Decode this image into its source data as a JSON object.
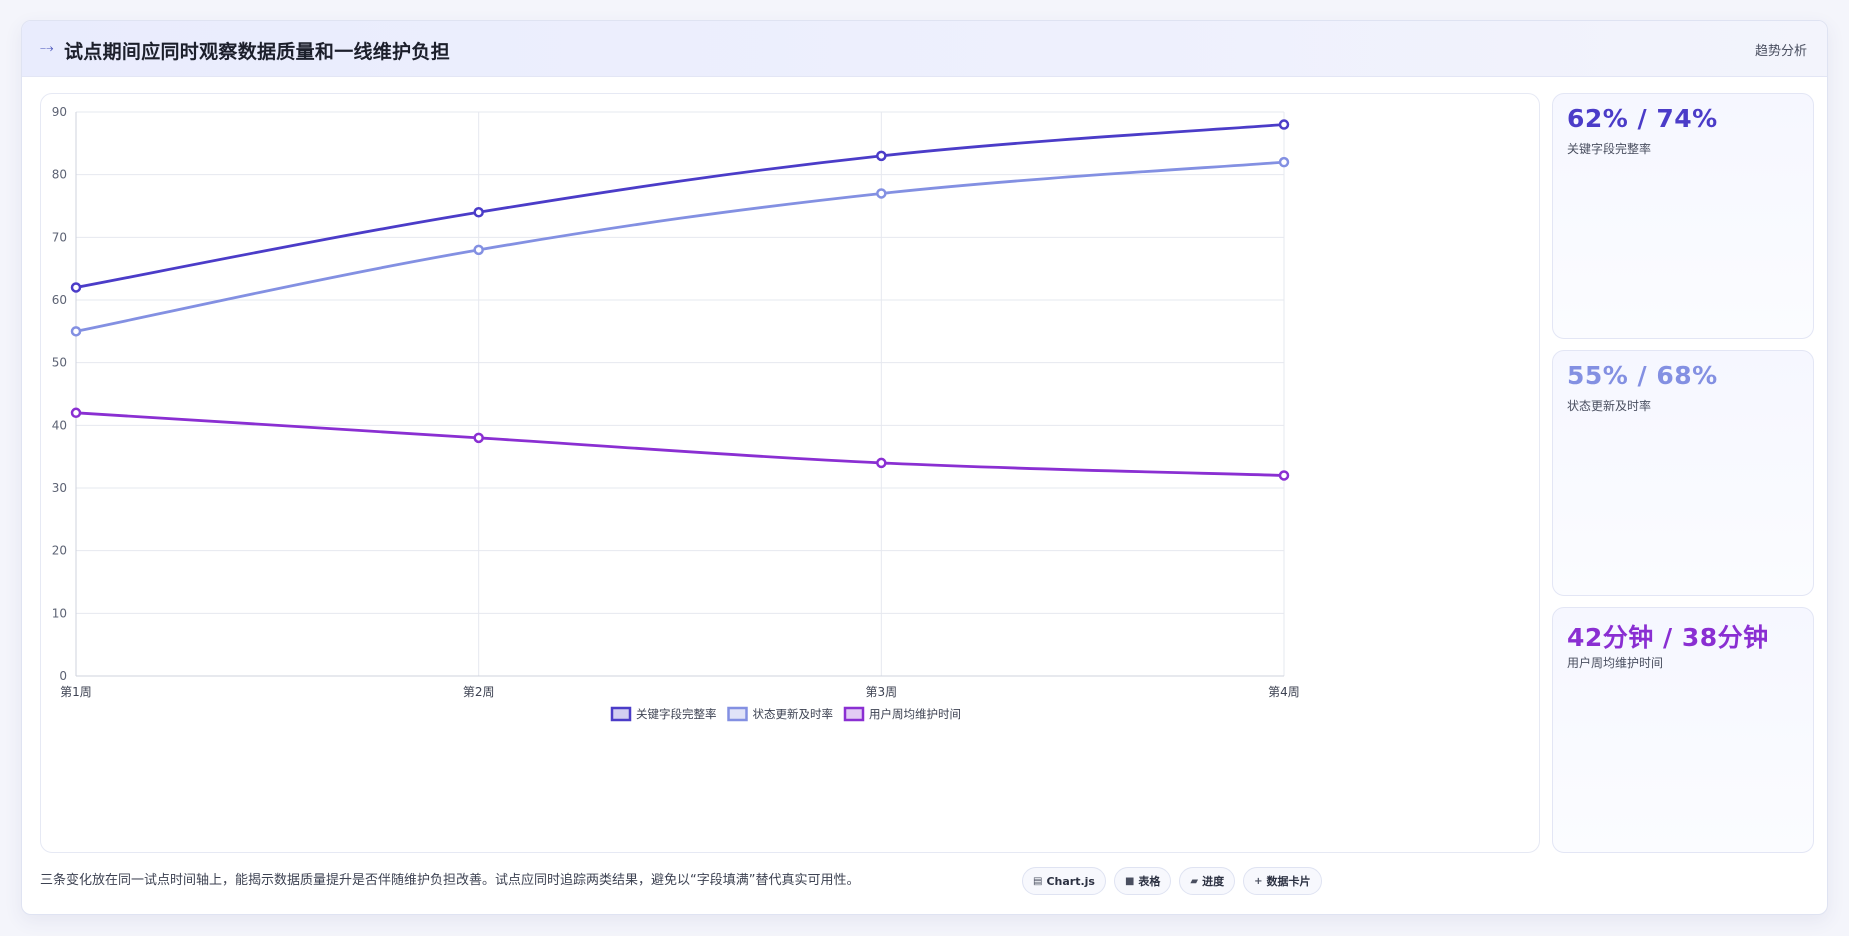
{
  "header": {
    "icon": "trend-icon",
    "title": "试点期间应同时观察数据质量和一线维护负担",
    "tag": "趋势分析"
  },
  "chart_data": {
    "type": "line",
    "categories": [
      "第1周",
      "第2周",
      "第3周",
      "第4周"
    ],
    "ylim": [
      0,
      90
    ],
    "yticks": [
      0,
      10,
      20,
      30,
      40,
      50,
      60,
      70,
      80,
      90
    ],
    "grid": true,
    "legend_position": "bottom",
    "series": [
      {
        "name": "关键字段完整率",
        "values": [
          62,
          74,
          83,
          88
        ],
        "color": "#4b3cc8"
      },
      {
        "name": "状态更新及时率",
        "values": [
          55,
          68,
          77,
          82
        ],
        "color": "#8390e2"
      },
      {
        "name": "用户周均维护时间",
        "values": [
          42,
          38,
          34,
          32
        ],
        "color": "#8a2fd2"
      }
    ]
  },
  "stats": [
    {
      "value": "62% / 74%",
      "label": "关键字段完整率",
      "color": "#4b3cc8"
    },
    {
      "value": "55% / 68%",
      "label": "状态更新及时率",
      "color": "#8390e2"
    },
    {
      "value": "42分钟 / 38分钟",
      "label": "用户周均维护时间",
      "color": "#8a2fd2"
    }
  ],
  "footer": {
    "note": "三条变化放在同一试点时间轴上，能揭示数据质量提升是否伴随维护负担改善。试点应同时追踪两类结果，避免以“字段填满”替代真实可用性。",
    "chips": [
      {
        "icon": "chart-icon",
        "label": "Chart.js"
      },
      {
        "icon": "table-icon",
        "label": "表格"
      },
      {
        "icon": "progress-icon",
        "label": "进度"
      },
      {
        "icon": "card-icon",
        "label": "数据卡片"
      }
    ]
  }
}
